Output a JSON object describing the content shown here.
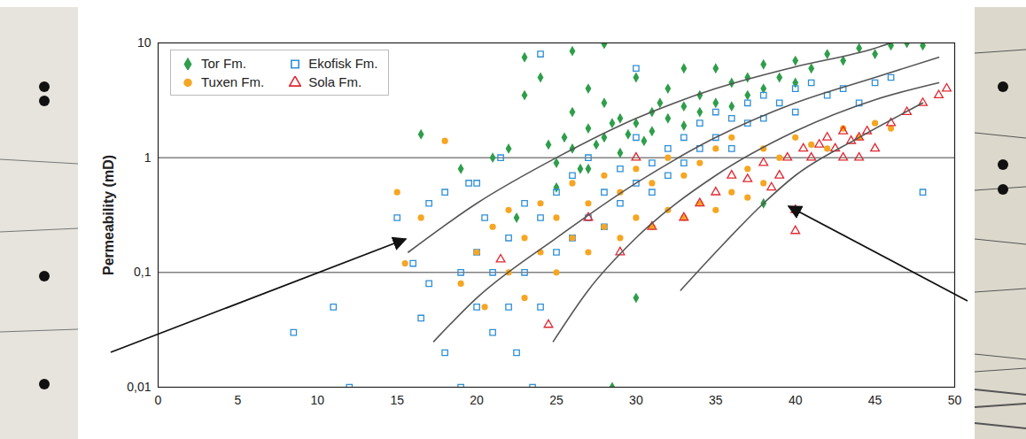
{
  "chart_data": {
    "type": "scatter",
    "y_label": "Permeability (mD)",
    "log": "y",
    "grid": true,
    "legend": "top-left",
    "xlim": [
      0,
      50
    ],
    "xticks": [
      0,
      5,
      10,
      15,
      20,
      25,
      30,
      35,
      40,
      45,
      50
    ],
    "ylim": [
      0.01,
      10
    ],
    "yticks": [
      {
        "value": 0.01,
        "label": "0,01"
      },
      {
        "value": 0.1,
        "label": "0,1"
      },
      1,
      10
    ],
    "series": [
      {
        "name": "Tor Fm.",
        "color": "#2e9e4a",
        "marker": "diamond",
        "x": [
          16.5,
          19,
          21,
          22,
          23,
          24,
          24.5,
          25,
          25.5,
          26,
          26,
          26.5,
          27,
          27,
          27.5,
          28,
          28,
          28.5,
          29,
          29,
          29.5,
          30,
          30,
          30.5,
          31,
          31,
          31.5,
          32,
          32,
          33,
          33,
          34,
          34,
          35,
          35,
          36,
          36,
          37,
          37,
          38,
          38,
          39,
          40,
          40,
          41,
          42,
          43,
          44,
          45,
          46,
          47,
          48,
          26,
          28,
          22.5,
          28.5,
          30,
          38,
          23,
          25,
          27,
          33
        ],
        "values": [
          1.6,
          0.8,
          1.0,
          1.2,
          7.5,
          5,
          1.3,
          0.9,
          1.5,
          1.2,
          2.5,
          0.8,
          1.8,
          4,
          1.3,
          1.5,
          3,
          2,
          1.1,
          2.2,
          1.6,
          2,
          5,
          1.4,
          2.5,
          1.7,
          3,
          2.2,
          4,
          2.8,
          1.9,
          3.5,
          2.5,
          3,
          6,
          4.5,
          2.8,
          5,
          3.5,
          4,
          6.5,
          5,
          7,
          4.5,
          6,
          8,
          7,
          9,
          8,
          9.5,
          10,
          9.5,
          8.5,
          9.8,
          0.3,
          0.01,
          0.06,
          0.4,
          3.5,
          0.55,
          0.8,
          6
        ]
      },
      {
        "name": "Ekofisk Fm.",
        "color": "#2f8fd6",
        "marker": "square-open",
        "x": [
          8.5,
          11,
          12,
          15,
          16,
          16.5,
          17,
          17,
          18,
          18,
          19,
          19,
          19.5,
          20,
          20,
          20.5,
          21,
          21,
          22,
          22,
          22.5,
          23,
          23,
          23.5,
          24,
          24,
          25,
          25,
          26,
          26,
          27,
          27,
          28,
          28,
          29,
          29,
          30,
          30,
          31,
          31,
          32,
          32,
          33,
          33,
          34,
          34,
          35,
          35,
          36,
          36,
          37,
          37,
          38,
          38,
          39,
          40,
          40,
          41,
          42,
          43,
          44,
          45,
          46,
          48,
          30,
          20,
          24,
          21.5
        ],
        "values": [
          0.03,
          0.05,
          0.01,
          0.3,
          0.12,
          0.04,
          0.4,
          0.08,
          0.02,
          0.5,
          0.1,
          0.01,
          0.6,
          0.15,
          0.05,
          0.3,
          0.1,
          0.03,
          0.2,
          0.05,
          0.02,
          0.1,
          0.4,
          0.01,
          0.3,
          0.05,
          0.15,
          0.5,
          0.2,
          0.7,
          0.3,
          1,
          0.5,
          0.25,
          0.8,
          0.4,
          0.6,
          1.5,
          0.9,
          0.5,
          1.2,
          0.7,
          1.5,
          0.9,
          2,
          1.2,
          2.5,
          1.5,
          2.2,
          1.2,
          3,
          2,
          3.5,
          2.2,
          3,
          4,
          2.5,
          4.5,
          3.5,
          4,
          3,
          4.5,
          5,
          0.5,
          6,
          0.6,
          8,
          1.0
        ]
      },
      {
        "name": "Tuxen Fm.",
        "color": "#f5a623",
        "marker": "circle",
        "x": [
          15,
          15.5,
          16.5,
          18,
          19,
          20,
          20.5,
          21,
          22,
          22,
          23,
          23,
          24,
          24,
          25,
          25,
          26,
          26,
          27,
          27,
          28,
          28,
          29,
          29,
          30,
          30,
          31,
          31,
          32,
          32,
          33,
          33,
          34,
          34,
          35,
          35,
          36,
          36,
          37,
          37,
          38,
          38,
          39,
          40,
          41,
          42,
          43,
          44,
          45,
          46
        ],
        "values": [
          0.5,
          0.12,
          0.3,
          1.4,
          0.08,
          0.15,
          0.05,
          0.25,
          0.1,
          0.35,
          0.2,
          0.06,
          0.15,
          0.4,
          0.1,
          0.3,
          0.2,
          0.6,
          0.15,
          0.4,
          0.25,
          0.7,
          0.2,
          0.5,
          0.3,
          0.8,
          0.25,
          0.6,
          0.35,
          1,
          0.3,
          0.7,
          0.4,
          0.9,
          0.35,
          1.2,
          0.5,
          1.5,
          0.45,
          0.8,
          0.6,
          1.2,
          1,
          1.5,
          1.3,
          1.2,
          1.8,
          1.5,
          2,
          1.8
        ]
      },
      {
        "name": "Sola Fm.",
        "color": "#e0262f",
        "marker": "triangle-open",
        "x": [
          21.5,
          24.5,
          27,
          29,
          30,
          31,
          33,
          34,
          35,
          36,
          37,
          38,
          38.5,
          39,
          39.5,
          40,
          40,
          40.5,
          41,
          41.5,
          42,
          42.5,
          43,
          43,
          43.5,
          44,
          44,
          44.5,
          45,
          46,
          47,
          48,
          49,
          49.5
        ],
        "values": [
          0.13,
          0.035,
          0.3,
          0.15,
          1,
          0.25,
          0.3,
          0.4,
          0.5,
          0.7,
          0.65,
          0.9,
          0.55,
          0.7,
          1,
          0.35,
          0.23,
          1.2,
          1,
          1.3,
          1.5,
          1.2,
          1.7,
          1,
          1.4,
          1.5,
          1,
          1.7,
          1.2,
          2,
          2.5,
          3,
          3.5,
          4
        ]
      }
    ],
    "curves": [
      {
        "color": "#555555",
        "line_style": "solid",
        "x": [
          15.7,
          20,
          25,
          30,
          35,
          40,
          45,
          46
        ],
        "values": [
          0.15,
          0.4,
          1.0,
          2.2,
          4,
          6.2,
          9,
          10
        ]
      },
      {
        "color": "#555555",
        "line_style": "solid",
        "x": [
          17.3,
          20,
          25,
          30,
          35,
          40,
          45,
          49
        ],
        "values": [
          0.025,
          0.06,
          0.2,
          0.6,
          1.5,
          3,
          5,
          7.5
        ]
      },
      {
        "color": "#555555",
        "line_style": "solid",
        "x": [
          24.8,
          27,
          30,
          35,
          40,
          45,
          49
        ],
        "values": [
          0.025,
          0.07,
          0.2,
          0.7,
          1.7,
          3.2,
          4.5
        ]
      },
      {
        "color": "#555555",
        "line_style": "solid",
        "x": [
          32.8,
          35,
          38,
          40,
          44,
          48
        ],
        "values": [
          0.07,
          0.15,
          0.4,
          0.7,
          1.5,
          3
        ]
      }
    ]
  }
}
